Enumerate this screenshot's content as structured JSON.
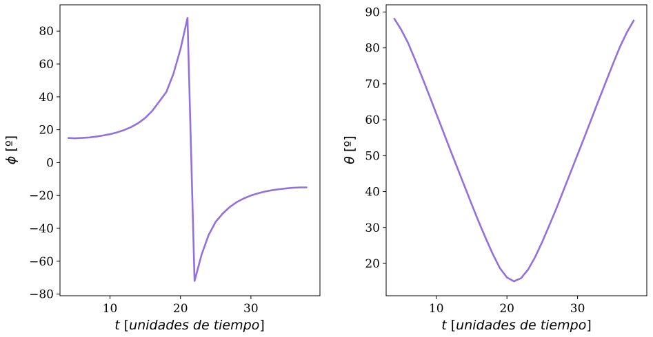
{
  "chart_data": [
    {
      "type": "line",
      "xlabel_var": "t",
      "xlabel_units": "unidades de tiempo",
      "ylabel_var": "ϕ",
      "ylabel_units": "[º]",
      "xlim": [
        2.9,
        39.8
      ],
      "ylim": [
        -81,
        96
      ],
      "xticks": [
        10,
        20,
        30
      ],
      "yticks": [
        -80,
        -60,
        -40,
        -20,
        0,
        20,
        40,
        60,
        80
      ],
      "ytick_labels": [
        "−80",
        "−60",
        "−40",
        "−20",
        "0",
        "20",
        "40",
        "60",
        "80"
      ],
      "color": "#9370DB",
      "grid": false,
      "series": [
        {
          "x": [
            4,
            5,
            6,
            7,
            8,
            9,
            10,
            11,
            12,
            13,
            14,
            15,
            16,
            17,
            18,
            19,
            20,
            21,
            22,
            23,
            24,
            25,
            26,
            27,
            28,
            29,
            30,
            31,
            32,
            33,
            34,
            35,
            36,
            37,
            38
          ],
          "y": [
            15.0,
            14.8,
            15.0,
            15.3,
            15.8,
            16.5,
            17.3,
            18.4,
            19.8,
            21.6,
            24.0,
            27.2,
            31.5,
            37.2,
            43.0,
            54.0,
            69.0,
            88.0,
            -72.0,
            -56.0,
            -44.0,
            -36.0,
            -31.0,
            -27.0,
            -24.0,
            -21.8,
            -20.0,
            -18.7,
            -17.6,
            -16.8,
            -16.2,
            -15.7,
            -15.3,
            -15.1,
            -15.1
          ]
        }
      ]
    },
    {
      "type": "line",
      "xlabel_var": "t",
      "xlabel_units": "unidades de tiempo",
      "ylabel_var": "θ",
      "ylabel_units": "[º]",
      "xlim": [
        2.9,
        39.8
      ],
      "ylim": [
        11,
        92
      ],
      "xticks": [
        10,
        20,
        30
      ],
      "yticks": [
        20,
        30,
        40,
        50,
        60,
        70,
        80,
        90
      ],
      "ytick_labels": [
        "20",
        "30",
        "40",
        "50",
        "60",
        "70",
        "80",
        "90"
      ],
      "color": "#9370DB",
      "grid": false,
      "series": [
        {
          "x": [
            4,
            5,
            6,
            7,
            8,
            9,
            10,
            11,
            12,
            13,
            14,
            15,
            16,
            17,
            18,
            19,
            20,
            21,
            22,
            23,
            24,
            25,
            26,
            27,
            28,
            29,
            30,
            31,
            32,
            33,
            34,
            35,
            36,
            37,
            38
          ],
          "y": [
            88.3,
            85.2,
            81.4,
            76.7,
            71.8,
            66.8,
            61.7,
            56.6,
            51.5,
            46.5,
            41.5,
            36.5,
            31.6,
            27.0,
            22.6,
            18.7,
            16.1,
            15.0,
            15.9,
            18.3,
            21.8,
            26.0,
            30.6,
            35.3,
            40.3,
            45.3,
            50.3,
            55.3,
            60.4,
            65.5,
            70.5,
            75.5,
            80.3,
            84.4,
            87.8
          ]
        }
      ]
    }
  ]
}
